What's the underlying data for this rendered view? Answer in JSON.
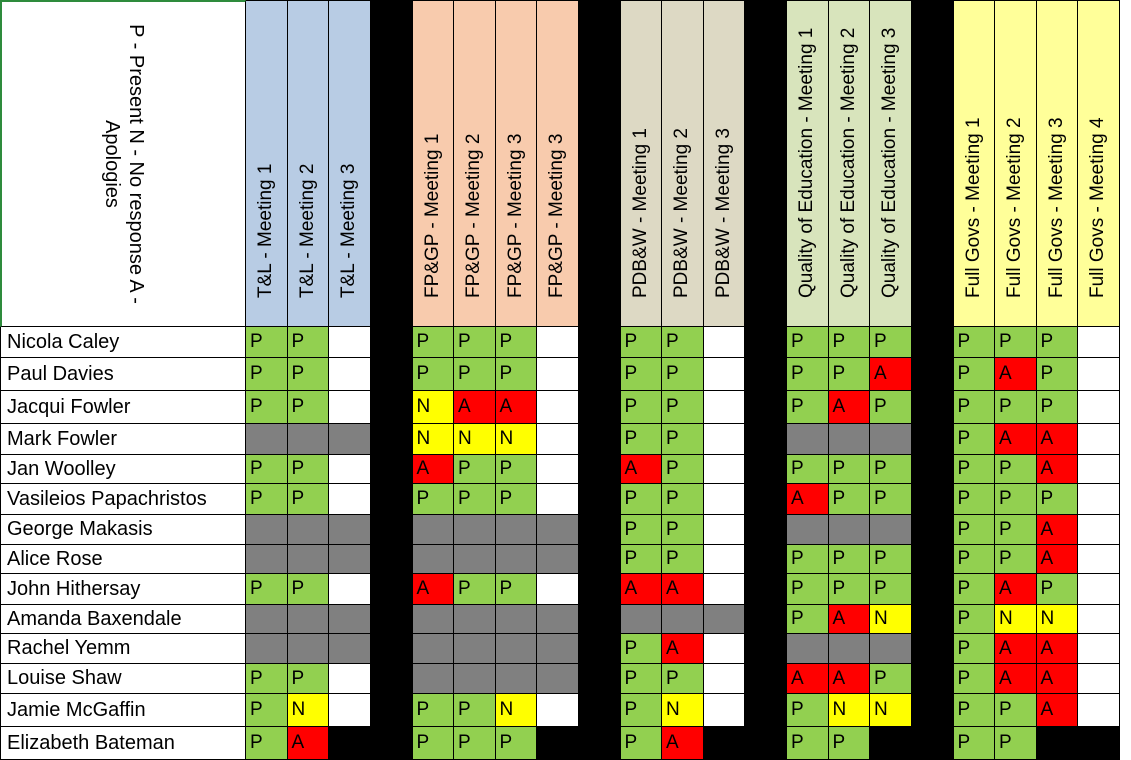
{
  "legend": "P - Present N - No response A - Apologies",
  "colors": {
    "P": "#92d050",
    "A": "#ff0000",
    "N": "#ffff00",
    "X": "#808080",
    "B": "#000000",
    "E": "#ffffff",
    "hdr_tl": "#b8cce4",
    "hdr_fp": "#f8cbad",
    "hdr_pd": "#ddd9c4",
    "hdr_qe": "#d8e4bc",
    "hdr_fg": "#ffff99"
  },
  "groups": [
    {
      "id": "tl",
      "color_key": "hdr_tl",
      "columns": [
        "T&L - Meeting 1",
        "T&L - Meeting 2",
        "T&L - Meeting 3"
      ]
    },
    {
      "id": "fp",
      "color_key": "hdr_fp",
      "columns": [
        "FP&GP - Meeting 1",
        "FP&GP - Meeting 2",
        "FP&GP - Meeting 3",
        "FP&GP - Meeting 3"
      ]
    },
    {
      "id": "pd",
      "color_key": "hdr_pd",
      "columns": [
        "PDB&W - Meeting 1",
        "PDB&W - Meeting 2",
        "PDB&W - Meeting 3"
      ]
    },
    {
      "id": "qe",
      "color_key": "hdr_qe",
      "columns": [
        "Quality of Education - Meeting 1",
        "Quality of Education - Meeting 2",
        "Quality of Education - Meeting 3"
      ]
    },
    {
      "id": "fg",
      "color_key": "hdr_fg",
      "columns": [
        "Full Govs - Meeting 1",
        "Full Govs - Meeting 2",
        "Full Govs - Meeting 3",
        "Full Govs - Meeting 4"
      ]
    }
  ],
  "rows": [
    {
      "name": "Nicola Caley",
      "cells": [
        [
          "P",
          "P",
          "E"
        ],
        [
          "P",
          "P",
          "P",
          "E"
        ],
        [
          "P",
          "P",
          "E"
        ],
        [
          "P",
          "P",
          "P"
        ],
        [
          "P",
          "P",
          "P",
          "E"
        ]
      ]
    },
    {
      "name": "Paul Davies",
      "cells": [
        [
          "P",
          "P",
          "E"
        ],
        [
          "P",
          "P",
          "P",
          "E"
        ],
        [
          "P",
          "P",
          "E"
        ],
        [
          "P",
          "P",
          "A"
        ],
        [
          "P",
          "A",
          "P",
          "E"
        ]
      ]
    },
    {
      "name": "Jacqui Fowler",
      "cells": [
        [
          "P",
          "P",
          "E"
        ],
        [
          "N",
          "A",
          "A",
          "E"
        ],
        [
          "P",
          "P",
          "E"
        ],
        [
          "P",
          "A",
          "P"
        ],
        [
          "P",
          "P",
          "P",
          "E"
        ]
      ]
    },
    {
      "name": "Mark Fowler",
      "cells": [
        [
          "X",
          "X",
          "X"
        ],
        [
          "N",
          "N",
          "N",
          "E"
        ],
        [
          "P",
          "P",
          "E"
        ],
        [
          "X",
          "X",
          "X"
        ],
        [
          "P",
          "A",
          "A",
          "E"
        ]
      ]
    },
    {
      "name": "Jan Woolley",
      "cells": [
        [
          "P",
          "P",
          "E"
        ],
        [
          "A",
          "P",
          "P",
          "E"
        ],
        [
          "A",
          "P",
          "E"
        ],
        [
          "P",
          "P",
          "P"
        ],
        [
          "P",
          "P",
          "A",
          "E"
        ]
      ]
    },
    {
      "name": "Vasileios Papachristos",
      "cells": [
        [
          "P",
          "P",
          "E"
        ],
        [
          "P",
          "P",
          "P",
          "E"
        ],
        [
          "P",
          "P",
          "E"
        ],
        [
          "A",
          "P",
          "P"
        ],
        [
          "P",
          "P",
          "P",
          "E"
        ]
      ]
    },
    {
      "name": "George Makasis",
      "cells": [
        [
          "X",
          "X",
          "X"
        ],
        [
          "X",
          "X",
          "X",
          "X"
        ],
        [
          "P",
          "P",
          "E"
        ],
        [
          "X",
          "X",
          "X"
        ],
        [
          "P",
          "P",
          "A",
          "E"
        ]
      ]
    },
    {
      "name": "Alice Rose",
      "cells": [
        [
          "X",
          "X",
          "X"
        ],
        [
          "X",
          "X",
          "X",
          "X"
        ],
        [
          "P",
          "P",
          "E"
        ],
        [
          "P",
          "P",
          "P"
        ],
        [
          "P",
          "P",
          "A",
          "E"
        ]
      ]
    },
    {
      "name": "John Hithersay",
      "cells": [
        [
          "P",
          "P",
          "E"
        ],
        [
          "A",
          "P",
          "P",
          "E"
        ],
        [
          "A",
          "A",
          "E"
        ],
        [
          "P",
          "P",
          "P"
        ],
        [
          "P",
          "A",
          "P",
          "E"
        ]
      ]
    },
    {
      "name": "Amanda Baxendale",
      "cells": [
        [
          "X",
          "X",
          "X"
        ],
        [
          "X",
          "X",
          "X",
          "X"
        ],
        [
          "X",
          "X",
          "X"
        ],
        [
          "P",
          "A",
          "N"
        ],
        [
          "P",
          "N",
          "N",
          "E"
        ]
      ]
    },
    {
      "name": "Rachel Yemm",
      "cells": [
        [
          "X",
          "X",
          "X"
        ],
        [
          "X",
          "X",
          "X",
          "X"
        ],
        [
          "P",
          "A",
          "E"
        ],
        [
          "X",
          "X",
          "X"
        ],
        [
          "P",
          "A",
          "A",
          "E"
        ]
      ]
    },
    {
      "name": "Louise Shaw",
      "cells": [
        [
          "P",
          "P",
          "E"
        ],
        [
          "X",
          "X",
          "X",
          "X"
        ],
        [
          "P",
          "P",
          "E"
        ],
        [
          "A",
          "A",
          "P"
        ],
        [
          "P",
          "A",
          "A",
          "E"
        ]
      ]
    },
    {
      "name": "Jamie McGaffin",
      "cells": [
        [
          "P",
          "N",
          "E"
        ],
        [
          "P",
          "P",
          "N",
          "E"
        ],
        [
          "P",
          "N",
          "E"
        ],
        [
          "P",
          "N",
          "N"
        ],
        [
          "P",
          "P",
          "A",
          "E"
        ]
      ]
    },
    {
      "name": "Elizabeth Bateman",
      "cells": [
        [
          "P",
          "A",
          "B"
        ],
        [
          "P",
          "P",
          "P",
          "B"
        ],
        [
          "P",
          "A",
          "B"
        ],
        [
          "P",
          "P",
          "B"
        ],
        [
          "P",
          "P",
          "B",
          "B"
        ]
      ]
    }
  ]
}
